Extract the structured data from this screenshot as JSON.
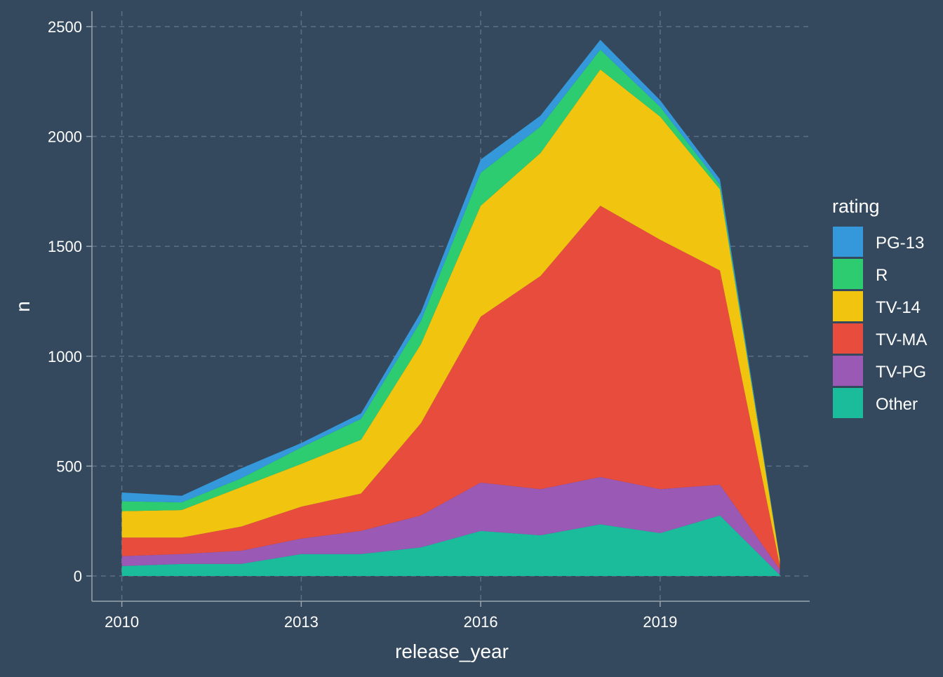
{
  "chart_data": {
    "type": "area",
    "stacked": true,
    "xlabel": "release_year",
    "ylabel": "n",
    "xlim": [
      2009.5,
      2021.5
    ],
    "ylim": [
      -115,
      2570
    ],
    "x_ticks": [
      2010,
      2013,
      2016,
      2019
    ],
    "x_tick_labels": [
      "2010",
      "2013",
      "2016",
      "2019"
    ],
    "y_ticks": [
      0,
      500,
      1000,
      1500,
      2000,
      2500
    ],
    "y_tick_labels": [
      "0",
      "500",
      "1000",
      "1500",
      "2000",
      "2500"
    ],
    "grid": true,
    "legend_title": "rating",
    "legend_position": "right",
    "x": [
      2010,
      2011,
      2012,
      2013,
      2014,
      2015,
      2016,
      2017,
      2018,
      2019,
      2020,
      2021
    ],
    "series": [
      {
        "name": "PG-13",
        "color": "#3498db",
        "values": [
          40,
          30,
          45,
          20,
          25,
          40,
          60,
          50,
          45,
          30,
          25,
          2
        ]
      },
      {
        "name": "R",
        "color": "#2ecc71",
        "values": [
          45,
          35,
          40,
          75,
          95,
          105,
          150,
          120,
          90,
          45,
          20,
          2
        ]
      },
      {
        "name": "TV-14",
        "color": "#f1c40f",
        "values": [
          120,
          125,
          180,
          195,
          245,
          360,
          505,
          560,
          620,
          560,
          370,
          25
        ]
      },
      {
        "name": "TV-MA",
        "color": "#e74c3c",
        "values": [
          85,
          75,
          110,
          145,
          170,
          420,
          755,
          970,
          1235,
          1135,
          975,
          20
        ]
      },
      {
        "name": "TV-PG",
        "color": "#9b59b6",
        "values": [
          45,
          45,
          60,
          70,
          105,
          145,
          220,
          210,
          215,
          200,
          140,
          25
        ]
      },
      {
        "name": "Other",
        "color": "#1abc9c",
        "values": [
          45,
          55,
          55,
          100,
          100,
          130,
          205,
          185,
          235,
          195,
          275,
          5
        ]
      }
    ]
  }
}
